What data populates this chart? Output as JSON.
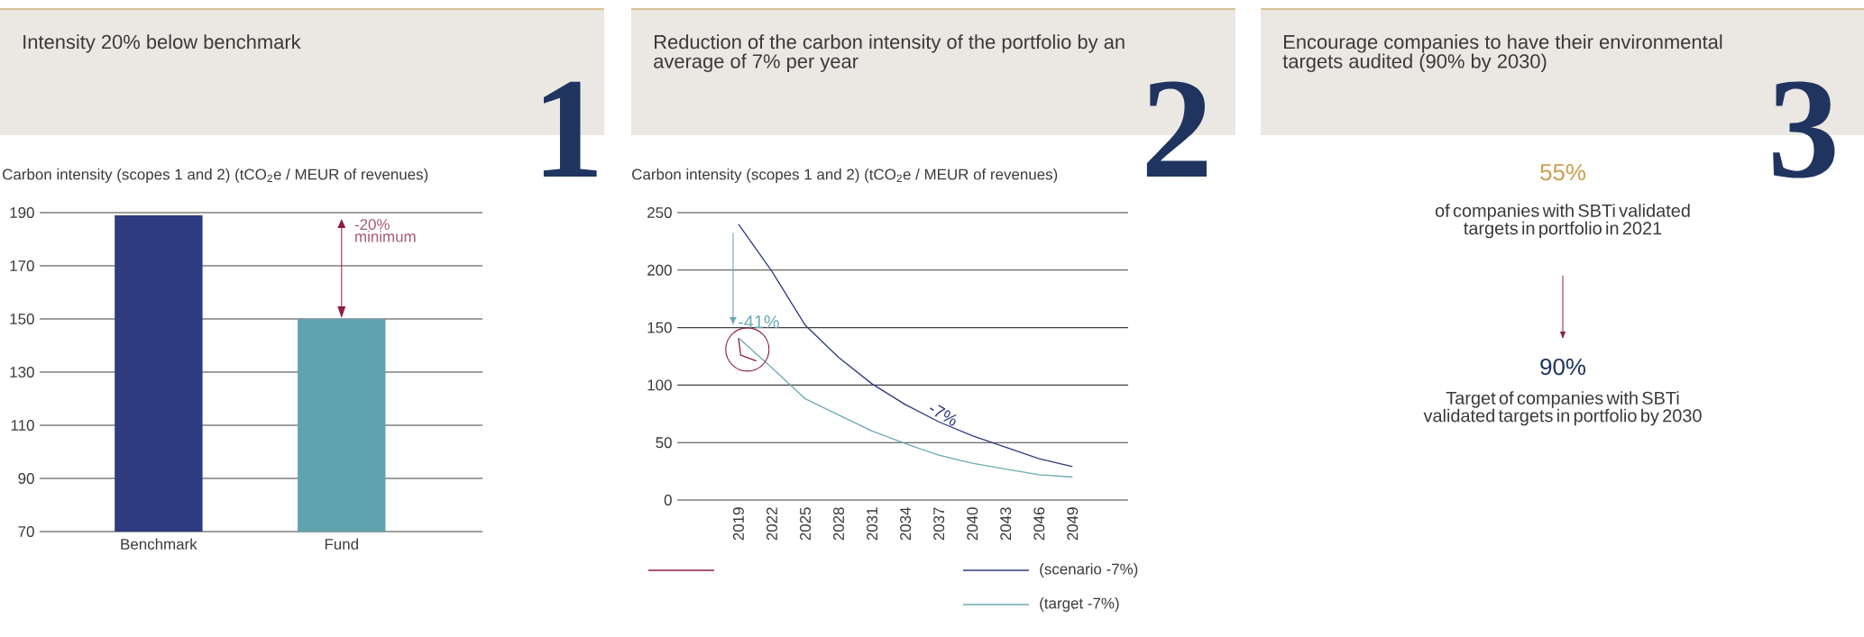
{
  "chart_data": [
    {
      "type": "bar",
      "title": "Intensity 20% below benchmark",
      "ylabel": "Carbon intensity (scopes 1 and 2)  (tCO$_{2}$e / MEUR of revenues)",
      "categories": [
        "Benchmark",
        "Fund"
      ],
      "values": [
        189,
        150
      ],
      "colors": [
        "#2e3b7e",
        "#5fa3af"
      ],
      "ylim": [
        70,
        190
      ],
      "yticks": [
        70,
        90,
        110,
        130,
        150,
        170,
        190
      ],
      "grid": "y",
      "annotations": [
        "1",
        "-20% minimum"
      ]
    },
    {
      "type": "line",
      "title": "Reduction of the carbon intensity of the portfolio by an average of 7% per year",
      "ylabel": "Carbon intensity (scopes 1 and 2)  (tCO$_{2}$e / MEUR of revenues)",
      "xlim": [
        2013.5,
        2054
      ],
      "xticks": [
        2019,
        2022,
        2025,
        2028,
        2031,
        2034,
        2037,
        2040,
        2043,
        2046,
        2049
      ],
      "ylim": [
        0,
        250
      ],
      "yticks": [
        0,
        50,
        100,
        150,
        200,
        250
      ],
      "grid": "y",
      "legend": "bottom",
      "series": [
        {
          "color": "#8b1e48",
          "x": [
            2019,
            2019.2,
            2020.6
          ],
          "values": [
            141,
            126,
            121
          ]
        },
        {
          "name": "(scenario -7%)",
          "color": "#2e3a7e",
          "x": [
            2019,
            2022,
            2025,
            2028,
            2031,
            2034,
            2037,
            2040,
            2043,
            2046,
            2049
          ],
          "values": [
            240,
            199,
            152,
            124,
            101,
            83,
            68,
            56,
            46,
            36,
            29
          ]
        },
        {
          "name": "(target -7%)",
          "color": "#6aaab5",
          "x": [
            2019,
            2022,
            2025,
            2028,
            2031,
            2034,
            2037,
            2040,
            2043,
            2046,
            2049
          ],
          "values": [
            141,
            115,
            88,
            74,
            60,
            49,
            39,
            32,
            27,
            22,
            20
          ]
        }
      ],
      "annotations": [
        "2",
        "-41%",
        "-7%"
      ]
    },
    {
      "type": "other",
      "title": "Encourage companies to have their environmental targets audited (90% by 2030)",
      "annotations": [
        "3",
        "55%",
        "of companies with SBTi validated targets in portfolio in 2021",
        "90%",
        "Target of companies with SBTi validated targets in portfolio by 2030"
      ]
    }
  ]
}
